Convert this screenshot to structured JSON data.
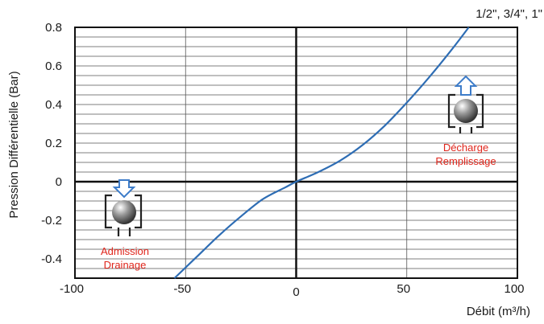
{
  "chart_data": {
    "type": "line",
    "title": "",
    "xlabel": "Débit (m³/h)",
    "ylabel": "Pression Différentielle (Bar)",
    "xlim": [
      -100,
      100
    ],
    "ylim": [
      -0.5,
      0.8
    ],
    "x_ticks": [
      -100,
      -50,
      0,
      50,
      100
    ],
    "y_ticks": [
      0.8,
      0.6,
      0.4,
      0.2,
      0,
      -0.2,
      -0.4
    ],
    "x_tick_labels": [
      "-100",
      "-50",
      "0",
      "50",
      "100"
    ],
    "y_tick_labels": [
      "0.8",
      "0.6",
      "0.4",
      "0.2",
      "0",
      "-0.2",
      "-0.4"
    ],
    "grid": true,
    "series": [
      {
        "name": "1/2\", 3/4\", 1\"",
        "color": "#2e6db4",
        "x": [
          -55,
          -45,
          -35,
          -25,
          -15,
          -5,
          0,
          10,
          20,
          30,
          40,
          50,
          60,
          70,
          78
        ],
        "y": [
          -0.5,
          -0.39,
          -0.28,
          -0.18,
          -0.09,
          -0.03,
          0.0,
          0.05,
          0.11,
          0.19,
          0.29,
          0.41,
          0.54,
          0.68,
          0.8
        ]
      }
    ],
    "annotations": [
      {
        "text_lines": [
          "Décharge",
          "Remplissage"
        ],
        "color": "#e0261c",
        "icon": "valve-outflow-icon"
      },
      {
        "text_lines": [
          "Admission",
          "Drainage"
        ],
        "color": "#e0261c",
        "icon": "valve-inflow-icon"
      }
    ]
  }
}
